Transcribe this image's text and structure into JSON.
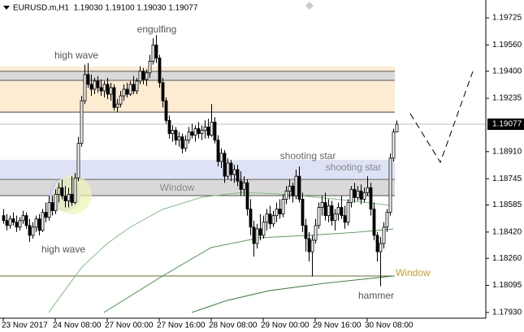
{
  "chart_data": {
    "type": "candlestick",
    "title": "EURUSD.m,H1  1.19030 1.19100 1.19030 1.19077",
    "ylim": [
      1.17895,
      1.19829
    ],
    "yticks": [
      1.19725,
      {
        "value": 1.1956,
        "label": "1.19560"
      },
      {
        "value": 1.194,
        "label": "1.19400"
      },
      1.19235,
      {
        "value": 1.1891,
        "label": "1.18910"
      },
      1.18745,
      1.18585,
      {
        "value": 1.1842,
        "label": "1.18420"
      },
      {
        "value": 1.1826,
        "label": "1.18260"
      },
      1.18095,
      {
        "value": 1.1793,
        "label": "1.17930"
      }
    ],
    "last_price": 1.19077,
    "categories": [
      "23 Nov 2017",
      null,
      null,
      null,
      null,
      null,
      null,
      null,
      null,
      null,
      null,
      null,
      null,
      null,
      null,
      null,
      "24 Nov 08:00",
      null,
      null,
      null,
      null,
      null,
      null,
      null,
      null,
      null,
      null,
      null,
      null,
      null,
      null,
      null,
      "27 Nov 00:00",
      null,
      null,
      null,
      null,
      null,
      null,
      null,
      null,
      null,
      null,
      null,
      null,
      null,
      null,
      null,
      "27 Nov 16:00",
      null,
      null,
      null,
      null,
      null,
      null,
      null,
      null,
      null,
      null,
      null,
      null,
      null,
      null,
      null,
      "28 Nov 08:00",
      null,
      null,
      null,
      null,
      null,
      null,
      null,
      null,
      null,
      null,
      null,
      null,
      null,
      null,
      null,
      "29 Nov 00:00",
      null,
      null,
      null,
      null,
      null,
      null,
      null,
      null,
      null,
      null,
      null,
      null,
      null,
      null,
      null,
      "29 Nov 16:00",
      null,
      null,
      null,
      null,
      null,
      null,
      null,
      null,
      null,
      null,
      null,
      null,
      null,
      null,
      null,
      "30 Nov 08:00",
      null,
      null,
      null,
      null,
      null,
      null,
      null,
      null,
      null
    ],
    "ohlc": [
      [
        1.1852,
        1.1856,
        1.1847,
        1.1849
      ],
      [
        1.1849,
        1.1853,
        1.1843,
        1.1846
      ],
      [
        1.1846,
        1.1852,
        1.1844,
        1.185
      ],
      [
        1.185,
        1.1854,
        1.1846,
        1.1848
      ],
      [
        1.1848,
        1.1852,
        1.1842,
        1.1845
      ],
      [
        1.1845,
        1.1851,
        1.1843,
        1.1849
      ],
      [
        1.1849,
        1.1855,
        1.1847,
        1.1852
      ],
      [
        1.1852,
        1.1854,
        1.1844,
        1.1846
      ],
      [
        1.1846,
        1.185,
        1.1836,
        1.184
      ],
      [
        1.184,
        1.1848,
        1.1838,
        1.1845
      ],
      [
        1.1845,
        1.1852,
        1.1842,
        1.185
      ],
      [
        1.185,
        1.1853,
        1.184,
        1.1843
      ],
      [
        1.1843,
        1.1856,
        1.1842,
        1.1854
      ],
      [
        1.1854,
        1.186,
        1.1848,
        1.1851
      ],
      [
        1.1851,
        1.1864,
        1.1849,
        1.186
      ],
      [
        1.186,
        1.1864,
        1.1852,
        1.1855
      ],
      [
        1.1855,
        1.1868,
        1.1853,
        1.1865
      ],
      [
        1.1865,
        1.1872,
        1.186,
        1.1869
      ],
      [
        1.1869,
        1.1874,
        1.1862,
        1.1864
      ],
      [
        1.1864,
        1.187,
        1.1857,
        1.1861
      ],
      [
        1.1861,
        1.1869,
        1.1857,
        1.1865
      ],
      [
        1.1865,
        1.1876,
        1.1858,
        1.186
      ],
      [
        1.186,
        1.1878,
        1.1859,
        1.1875
      ],
      [
        1.1875,
        1.19,
        1.1873,
        1.1896
      ],
      [
        1.1896,
        1.1925,
        1.1894,
        1.1922
      ],
      [
        1.1922,
        1.1944,
        1.192,
        1.1938
      ],
      [
        1.1938,
        1.1945,
        1.193,
        1.1932
      ],
      [
        1.1932,
        1.1938,
        1.1925,
        1.1929
      ],
      [
        1.1929,
        1.1936,
        1.1926,
        1.1934
      ],
      [
        1.1934,
        1.1937,
        1.1927,
        1.193
      ],
      [
        1.193,
        1.1935,
        1.1925,
        1.1928
      ],
      [
        1.1928,
        1.1934,
        1.1924,
        1.1932
      ],
      [
        1.1932,
        1.1936,
        1.1923,
        1.1926
      ],
      [
        1.1926,
        1.1933,
        1.1922,
        1.193
      ],
      [
        1.193,
        1.1932,
        1.1916,
        1.1918
      ],
      [
        1.1918,
        1.1923,
        1.1915,
        1.192
      ],
      [
        1.192,
        1.1928,
        1.1918,
        1.1925
      ],
      [
        1.1925,
        1.1932,
        1.1922,
        1.1929
      ],
      [
        1.1929,
        1.1933,
        1.1924,
        1.1926
      ],
      [
        1.1926,
        1.1934,
        1.1925,
        1.1932
      ],
      [
        1.1932,
        1.1937,
        1.1926,
        1.1928
      ],
      [
        1.1928,
        1.1936,
        1.1926,
        1.1934
      ],
      [
        1.1934,
        1.1943,
        1.1932,
        1.194
      ],
      [
        1.194,
        1.1942,
        1.1932,
        1.1935
      ],
      [
        1.1935,
        1.1941,
        1.1931,
        1.1939
      ],
      [
        1.1939,
        1.195,
        1.1936,
        1.1946
      ],
      [
        1.1946,
        1.196,
        1.1944,
        1.1956
      ],
      [
        1.1956,
        1.1962,
        1.1945,
        1.1948
      ],
      [
        1.1948,
        1.195,
        1.193,
        1.1933
      ],
      [
        1.1933,
        1.1936,
        1.1918,
        1.1922
      ],
      [
        1.1922,
        1.1924,
        1.1908,
        1.191
      ],
      [
        1.191,
        1.1913,
        1.1899,
        1.1902
      ],
      [
        1.1902,
        1.1907,
        1.1897,
        1.1904
      ],
      [
        1.1904,
        1.1906,
        1.1895,
        1.1898
      ],
      [
        1.1898,
        1.1903,
        1.1894,
        1.19
      ],
      [
        1.19,
        1.1902,
        1.189,
        1.1893
      ],
      [
        1.1893,
        1.1901,
        1.1891,
        1.1898
      ],
      [
        1.1898,
        1.1906,
        1.1896,
        1.1903
      ],
      [
        1.1903,
        1.1908,
        1.1899,
        1.1901
      ],
      [
        1.1901,
        1.1907,
        1.1897,
        1.1905
      ],
      [
        1.1905,
        1.1909,
        1.1899,
        1.1902
      ],
      [
        1.1902,
        1.1907,
        1.1898,
        1.1904
      ],
      [
        1.1904,
        1.191,
        1.1899,
        1.1906
      ],
      [
        1.1906,
        1.1911,
        1.1899,
        1.1901
      ],
      [
        1.1901,
        1.192,
        1.19,
        1.1909
      ],
      [
        1.1909,
        1.1912,
        1.1896,
        1.1898
      ],
      [
        1.1898,
        1.1901,
        1.1882,
        1.1885
      ],
      [
        1.1885,
        1.1893,
        1.1881,
        1.189
      ],
      [
        1.189,
        1.1892,
        1.1872,
        1.1876
      ],
      [
        1.1876,
        1.1887,
        1.1874,
        1.1884
      ],
      [
        1.1884,
        1.1886,
        1.1873,
        1.1877
      ],
      [
        1.1877,
        1.1883,
        1.1872,
        1.188
      ],
      [
        1.188,
        1.1883,
        1.187,
        1.1873
      ],
      [
        1.1873,
        1.1879,
        1.1864,
        1.1868
      ],
      [
        1.1868,
        1.1876,
        1.1864,
        1.1872
      ],
      [
        1.1872,
        1.1874,
        1.1852,
        1.1856
      ],
      [
        1.1856,
        1.1862,
        1.184,
        1.1845
      ],
      [
        1.1845,
        1.1849,
        1.1827,
        1.1835
      ],
      [
        1.1835,
        1.1847,
        1.1832,
        1.1844
      ],
      [
        1.1844,
        1.1853,
        1.1837,
        1.184
      ],
      [
        1.184,
        1.1852,
        1.1838,
        1.1848
      ],
      [
        1.1848,
        1.1856,
        1.1843,
        1.1853
      ],
      [
        1.1853,
        1.1858,
        1.1844,
        1.1847
      ],
      [
        1.1847,
        1.1855,
        1.1845,
        1.1852
      ],
      [
        1.1852,
        1.186,
        1.1848,
        1.1856
      ],
      [
        1.1856,
        1.1862,
        1.185,
        1.1853
      ],
      [
        1.1853,
        1.1865,
        1.1851,
        1.1862
      ],
      [
        1.1862,
        1.187,
        1.1859,
        1.1867
      ],
      [
        1.1867,
        1.1874,
        1.1862,
        1.187
      ],
      [
        1.187,
        1.1872,
        1.186,
        1.1864
      ],
      [
        1.1864,
        1.188,
        1.1862,
        1.1876
      ],
      [
        1.1876,
        1.1882,
        1.186,
        1.1862
      ],
      [
        1.1862,
        1.1866,
        1.1842,
        1.1846
      ],
      [
        1.1846,
        1.185,
        1.183,
        1.1838
      ],
      [
        1.1838,
        1.1842,
        1.1824,
        1.183
      ],
      [
        1.183,
        1.184,
        1.1815,
        1.1837
      ],
      [
        1.1837,
        1.185,
        1.1835,
        1.1846
      ],
      [
        1.1846,
        1.186,
        1.1844,
        1.1857
      ],
      [
        1.1857,
        1.1864,
        1.1852,
        1.186
      ],
      [
        1.186,
        1.1866,
        1.1849,
        1.1852
      ],
      [
        1.1852,
        1.1862,
        1.1848,
        1.1858
      ],
      [
        1.1858,
        1.1861,
        1.1846,
        1.1849
      ],
      [
        1.1849,
        1.1856,
        1.1843,
        1.1853
      ],
      [
        1.1853,
        1.186,
        1.1849,
        1.1857
      ],
      [
        1.1857,
        1.1864,
        1.185,
        1.1852
      ],
      [
        1.1852,
        1.1858,
        1.1844,
        1.1848
      ],
      [
        1.1848,
        1.1862,
        1.1846,
        1.186
      ],
      [
        1.186,
        1.187,
        1.1857,
        1.1868
      ],
      [
        1.1868,
        1.1872,
        1.186,
        1.1863
      ],
      [
        1.1863,
        1.187,
        1.1861,
        1.1867
      ],
      [
        1.1867,
        1.1871,
        1.1859,
        1.1862
      ],
      [
        1.1862,
        1.1869,
        1.186,
        1.1866
      ],
      [
        1.1866,
        1.1876,
        1.1864,
        1.1869
      ],
      [
        1.1869,
        1.1872,
        1.1852,
        1.1856
      ],
      [
        1.1856,
        1.186,
        1.1837,
        1.184
      ],
      [
        1.184,
        1.1842,
        1.1824,
        1.183
      ],
      [
        1.183,
        1.1839,
        1.1809,
        1.1835
      ],
      [
        1.1835,
        1.1848,
        1.1832,
        1.1845
      ],
      [
        1.1845,
        1.1856,
        1.1842,
        1.1854
      ],
      [
        1.1854,
        1.189,
        1.1852,
        1.1887
      ],
      [
        1.1887,
        1.1905,
        1.1885,
        1.1903
      ],
      [
        1.1903,
        1.191,
        1.1903,
        1.19077
      ]
    ],
    "series": [
      {
        "color": "#7fbf7f",
        "x": [
          14,
          24,
          32,
          39,
          49,
          61,
          74,
          89,
          104,
          119
        ],
        "values": [
          1.1793,
          1.18202,
          1.1835,
          1.18449,
          1.18558,
          1.18632,
          1.18662,
          1.18647,
          1.18617,
          1.18583
        ]
      },
      {
        "color": "#4f9a4f",
        "x": [
          31,
          39,
          49,
          64,
          79,
          94,
          109,
          120
        ],
        "values": [
          1.1793,
          1.18029,
          1.18152,
          1.18326,
          1.18385,
          1.184,
          1.18419,
          1.18439
        ]
      },
      {
        "color": "#2e7d32",
        "x": [
          58,
          69,
          82,
          99,
          120
        ],
        "values": [
          1.1793,
          1.18004,
          1.18063,
          1.18108,
          1.18152
        ]
      }
    ],
    "bands": [
      {
        "from": 1.19151,
        "to": 1.19428,
        "color": "#fdebd2"
      },
      {
        "from": 1.19344,
        "to": 1.19399,
        "color": "#d9d9d9"
      },
      {
        "from": 1.18746,
        "to": 1.1886,
        "color": "#dde2f7"
      },
      {
        "from": 1.18642,
        "to": 1.18741,
        "color": "#d9d9d9"
      }
    ],
    "levels": [
      {
        "value": 1.19151,
        "color": "#444444"
      },
      {
        "value": 1.18152,
        "color": "#6b6b2a"
      }
    ],
    "annotations": [
      "engulfing",
      "high wave",
      "high wave",
      "Window",
      "shooting star",
      "shooting star",
      "Window",
      "hammer"
    ]
  }
}
